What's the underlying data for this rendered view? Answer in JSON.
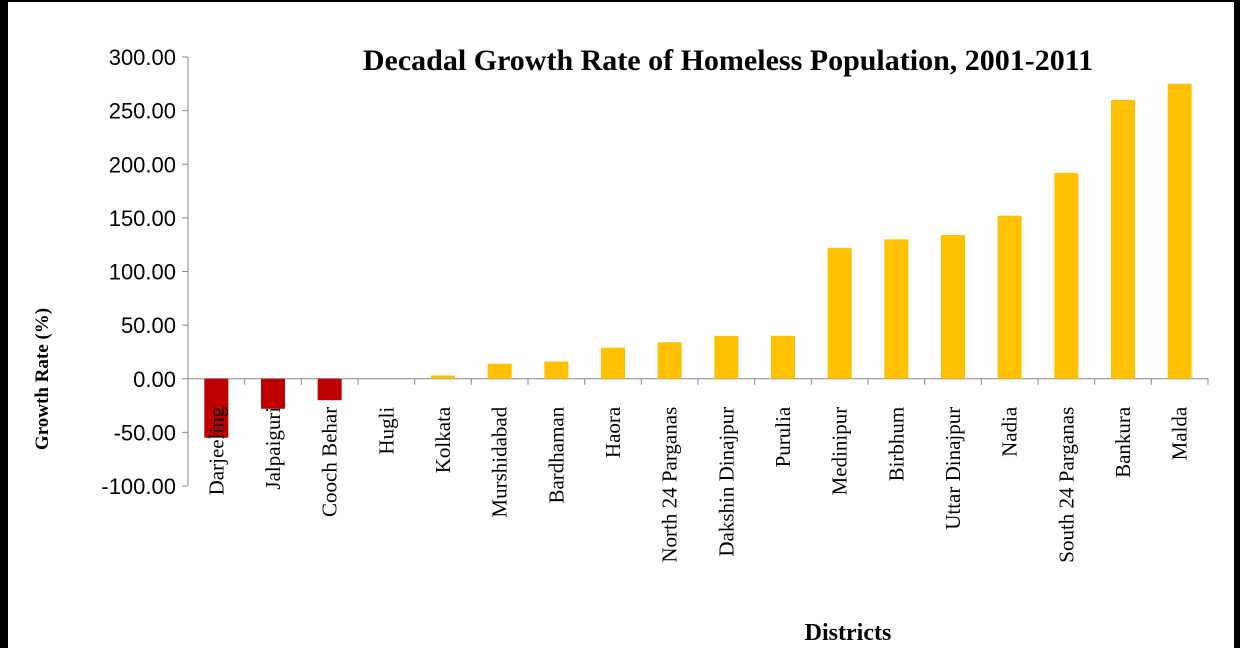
{
  "chart_data": {
    "type": "bar",
    "title": "Decadal Growth Rate of Homeless Population, 2001-2011",
    "xlabel": "Districts",
    "ylabel": "Growth Rate (%)",
    "ylim": [
      -100,
      300
    ],
    "yticks": [
      "300.00",
      "250.00",
      "200.00",
      "150.00",
      "100.00",
      "50.00",
      "0.00",
      "-50.00",
      "-100.00"
    ],
    "grid": false,
    "legend": "none",
    "categories": [
      "Darjeeling",
      "Jalpaiguri",
      "Cooch Behar",
      "Hugli",
      "Kolkata",
      "Murshidabad",
      "Bardhaman",
      "Haora",
      "North 24 Parganas",
      "Dakshin Dinajpur",
      "Purulia",
      "Medinipur",
      "Birbhum",
      "Uttar Dinajpur",
      "Nadia",
      "South 24 Parganas",
      "Bankura",
      "Malda"
    ],
    "values": [
      -55,
      -28,
      -20,
      0,
      3,
      14,
      16,
      29,
      34,
      40,
      40,
      122,
      130,
      134,
      152,
      192,
      260,
      275
    ],
    "colors": {
      "negative": "#c00000",
      "positive": "#ffc000"
    }
  }
}
